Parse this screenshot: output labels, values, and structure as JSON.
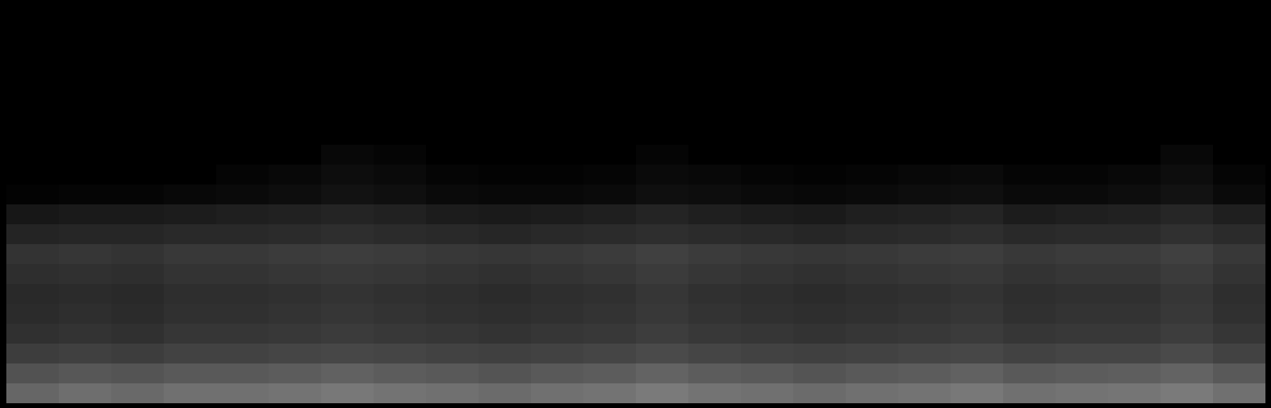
{
  "chart_data": {
    "type": "heatmap",
    "tick_labels": false,
    "zlim": [
      0,
      100
    ],
    "values": [
      [
        0,
        0,
        0,
        0,
        0,
        0,
        0,
        0,
        0,
        0,
        0,
        0,
        0,
        0,
        0,
        0,
        0,
        0,
        0,
        0,
        0,
        0,
        0,
        0
      ],
      [
        0,
        0,
        0,
        0,
        0,
        0,
        0,
        0,
        0,
        0,
        0,
        0,
        0,
        0,
        0,
        0,
        0,
        0,
        0,
        0,
        0,
        0,
        0,
        0
      ],
      [
        0,
        0,
        0,
        0,
        0,
        0,
        0,
        0,
        0,
        0,
        0,
        0,
        0,
        0,
        0,
        0,
        0,
        0,
        0,
        0,
        0,
        0,
        0,
        0
      ],
      [
        0,
        0,
        0,
        0,
        0,
        0,
        0,
        0,
        0,
        0,
        0,
        0,
        0,
        0,
        0,
        0,
        0,
        0,
        0,
        0,
        0,
        0,
        0,
        0
      ],
      [
        0,
        0,
        0,
        0,
        0,
        0,
        0,
        0,
        0,
        0,
        0,
        0,
        0,
        0,
        0,
        0,
        0,
        0,
        0,
        0,
        0,
        0,
        0,
        0
      ],
      [
        0,
        0,
        0,
        0,
        0,
        0,
        0,
        0,
        0,
        0,
        0,
        0,
        0,
        0,
        0,
        0,
        0,
        0,
        0,
        0,
        0,
        0,
        0,
        0
      ],
      [
        0,
        0,
        0,
        0,
        0,
        0,
        0,
        0,
        0,
        0,
        0,
        0,
        0,
        0,
        0,
        0,
        0,
        0,
        0,
        0,
        0,
        0,
        0,
        0
      ],
      [
        0,
        0,
        0,
        0,
        0,
        0,
        3,
        2,
        0,
        0,
        0,
        0,
        2,
        0,
        0,
        0,
        0,
        0,
        0,
        0,
        0,
        0,
        3,
        0
      ],
      [
        0,
        0,
        0,
        0,
        2,
        3,
        5,
        4,
        2,
        1,
        1,
        2,
        4,
        3,
        2,
        1,
        2,
        3,
        4,
        2,
        2,
        3,
        5,
        2
      ],
      [
        1,
        2,
        2,
        3,
        4,
        5,
        7,
        6,
        4,
        3,
        3,
        4,
        6,
        5,
        4,
        3,
        4,
        5,
        6,
        4,
        4,
        5,
        7,
        4
      ],
      [
        9,
        10,
        10,
        11,
        12,
        13,
        14,
        13,
        11,
        10,
        11,
        12,
        14,
        12,
        11,
        10,
        12,
        13,
        14,
        11,
        12,
        13,
        15,
        12
      ],
      [
        14,
        15,
        15,
        16,
        16,
        17,
        18,
        17,
        16,
        15,
        16,
        17,
        18,
        17,
        16,
        15,
        16,
        17,
        18,
        16,
        17,
        17,
        19,
        17
      ],
      [
        20,
        21,
        20,
        22,
        22,
        23,
        24,
        23,
        22,
        21,
        22,
        23,
        25,
        23,
        22,
        21,
        22,
        23,
        24,
        22,
        23,
        23,
        25,
        22
      ],
      [
        18,
        19,
        18,
        20,
        20,
        21,
        22,
        21,
        20,
        19,
        20,
        21,
        23,
        21,
        20,
        19,
        20,
        21,
        22,
        20,
        21,
        21,
        23,
        20
      ],
      [
        16,
        17,
        16,
        18,
        18,
        19,
        20,
        19,
        18,
        17,
        18,
        19,
        21,
        19,
        18,
        17,
        18,
        19,
        20,
        18,
        19,
        19,
        21,
        18
      ],
      [
        17,
        18,
        17,
        19,
        19,
        20,
        21,
        20,
        19,
        18,
        19,
        20,
        22,
        20,
        19,
        18,
        19,
        20,
        21,
        19,
        20,
        20,
        22,
        19
      ],
      [
        19,
        20,
        19,
        21,
        21,
        22,
        23,
        22,
        21,
        20,
        21,
        22,
        24,
        22,
        21,
        20,
        21,
        22,
        23,
        21,
        22,
        22,
        24,
        21
      ],
      [
        24,
        25,
        24,
        26,
        26,
        27,
        28,
        27,
        26,
        25,
        26,
        27,
        29,
        27,
        26,
        25,
        26,
        27,
        28,
        26,
        27,
        27,
        29,
        26
      ],
      [
        32,
        34,
        33,
        35,
        35,
        36,
        38,
        36,
        35,
        33,
        35,
        36,
        39,
        36,
        35,
        33,
        35,
        36,
        38,
        35,
        36,
        37,
        39,
        35
      ],
      [
        40,
        43,
        41,
        44,
        44,
        45,
        47,
        45,
        44,
        42,
        44,
        45,
        48,
        45,
        44,
        42,
        44,
        45,
        47,
        44,
        45,
        46,
        48,
        44
      ]
    ]
  }
}
